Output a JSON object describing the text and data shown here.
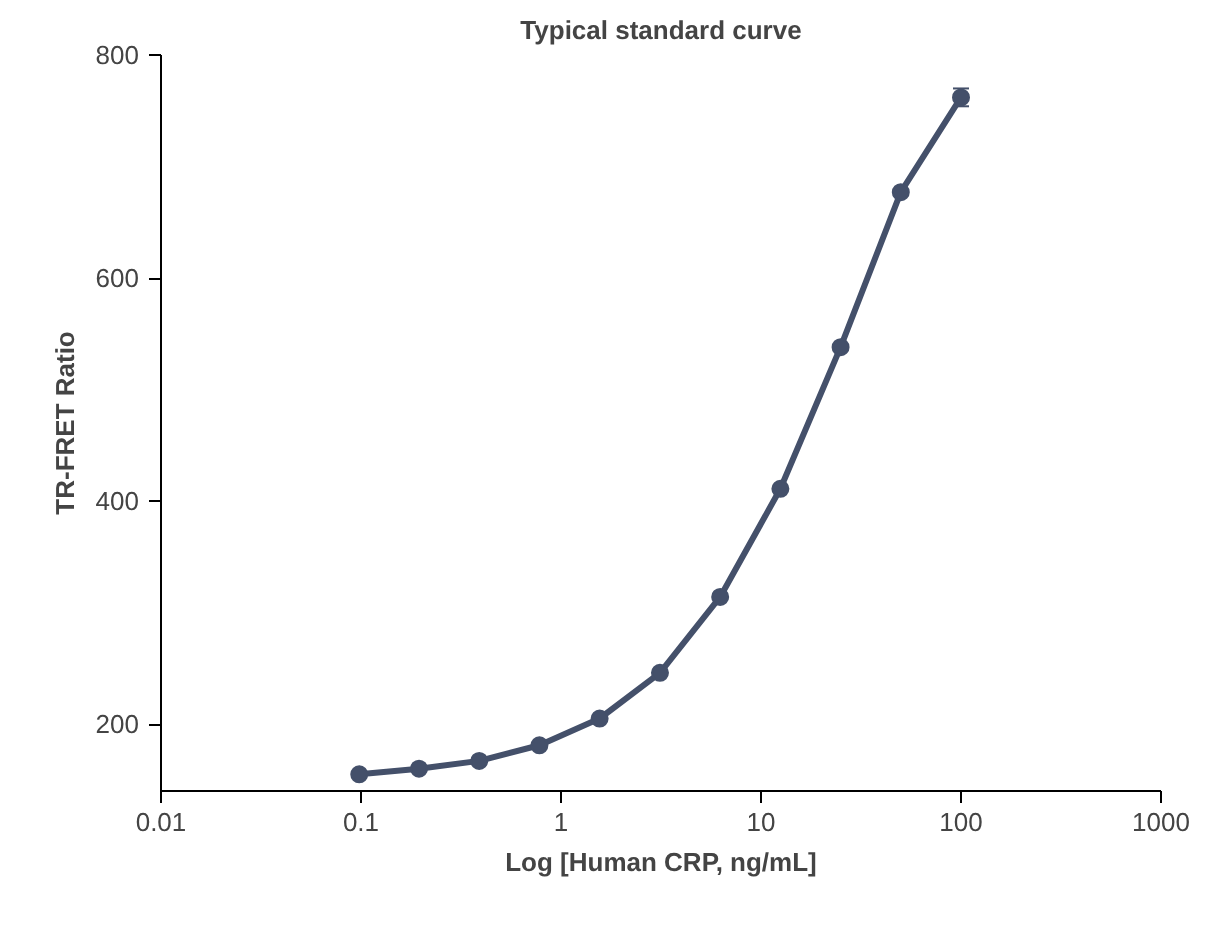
{
  "chart_data": {
    "type": "line",
    "title": "Typical standard curve",
    "xlabel": "Log [Human CRP, ng/mL]",
    "ylabel": "TR-FRET Ratio",
    "log": "x",
    "grid": false,
    "marker": "circle",
    "line_style": "solid",
    "xlim": [
      0.01,
      1000
    ],
    "xticks": [
      0.01,
      0.1,
      1,
      10,
      100,
      1000
    ],
    "ylim": [
      140,
      800
    ],
    "yticks": [
      200,
      400,
      600,
      800
    ],
    "series": [
      {
        "color": "#44506a",
        "x": [
          0.098,
          0.195,
          0.39,
          0.78,
          1.56,
          3.125,
          6.25,
          12.5,
          25,
          50,
          100
        ],
        "values": [
          155,
          160,
          167,
          181,
          205,
          246,
          314,
          411,
          538,
          677,
          762
        ],
        "errors": [
          null,
          null,
          null,
          null,
          null,
          null,
          null,
          null,
          null,
          null,
          8
        ]
      }
    ]
  }
}
